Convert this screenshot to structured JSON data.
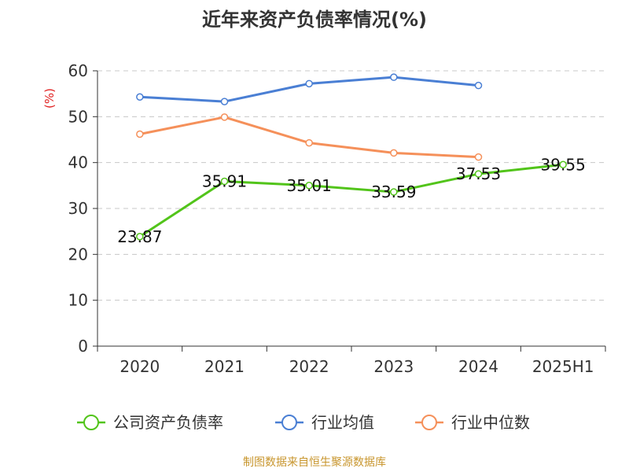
{
  "chart_data": {
    "type": "line",
    "title": "近年来资产负债率情况(%)",
    "y_unit": "(%)",
    "categories": [
      "2020",
      "2021",
      "2022",
      "2023",
      "2024",
      "2025H1"
    ],
    "ylim": [
      0,
      60
    ],
    "yticks": [
      0,
      10,
      20,
      30,
      40,
      50,
      60
    ],
    "grid": true,
    "legend_position": "bottom",
    "series": [
      {
        "name": "公司资产负债率",
        "color": "#52c41a",
        "values": [
          23.87,
          35.91,
          35.01,
          33.59,
          37.53,
          39.55
        ],
        "labels": true
      },
      {
        "name": "行业均值",
        "color": "#4a7fd4",
        "values": [
          54.3,
          53.3,
          57.2,
          58.6,
          56.8,
          null
        ],
        "labels": false
      },
      {
        "name": "行业中位数",
        "color": "#f5905a",
        "values": [
          46.2,
          49.9,
          44.3,
          42.1,
          41.2,
          null
        ],
        "labels": false
      }
    ],
    "source": "制图数据来自恒生聚源数据库"
  }
}
